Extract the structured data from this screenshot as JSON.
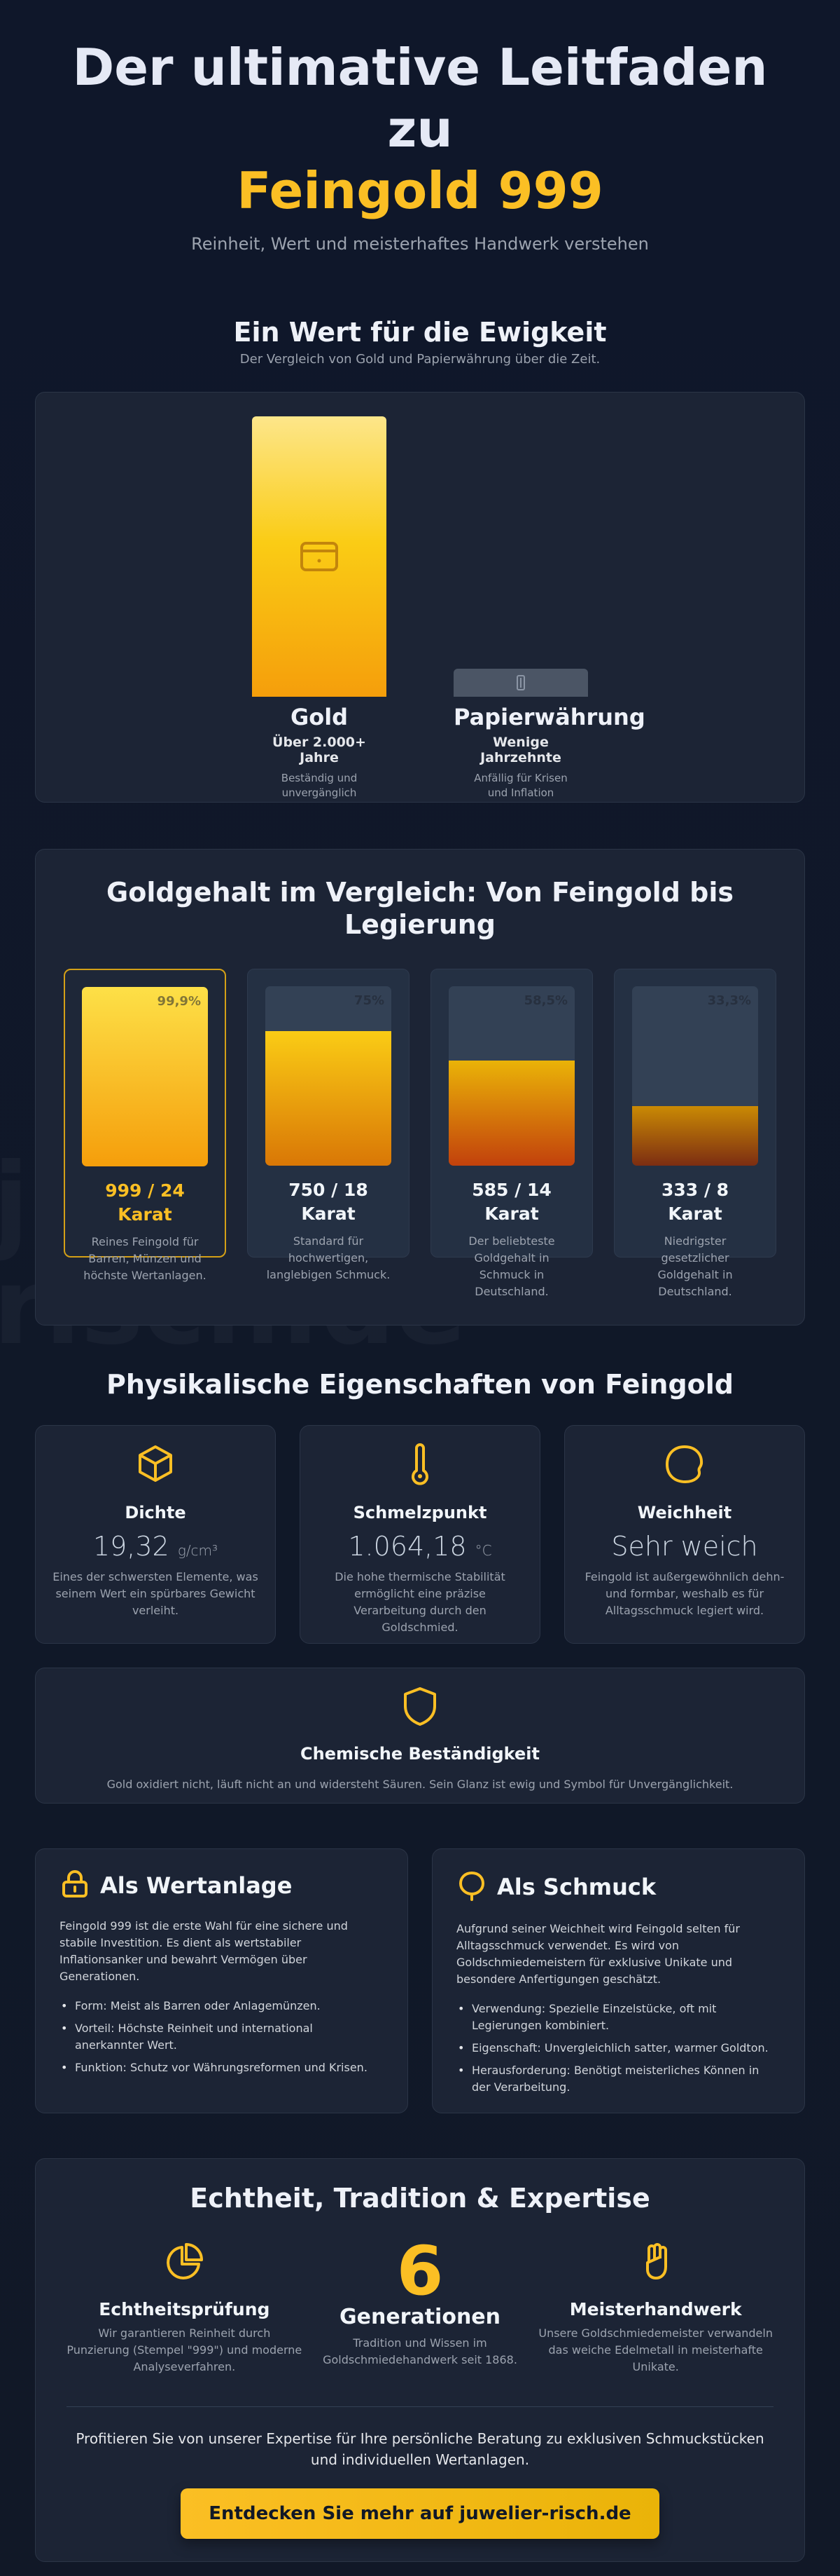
{
  "hero": {
    "title_line1": "Der ultimative Leitfaden",
    "title_line2": "zu",
    "title_gold": "Feingold 999",
    "subtitle": "Reinheit, Wert und meisterhaftes Handwerk verstehen"
  },
  "watermark": {
    "line1": "juwelier-",
    "line2": "risch.de"
  },
  "value": {
    "title": "Ein Wert für die Ewigkeit",
    "subtitle": "Der Vergleich von Gold und Papierwährung über die Zeit.",
    "gold": {
      "label": "Gold",
      "span": "Über 2.000+ Jahre",
      "note": "Beständig und unvergänglich",
      "icon": "wallet-icon",
      "level": 1.0
    },
    "paper": {
      "label": "Papierwährung",
      "span": "Wenige Jahrzehnte",
      "note": "Anfällig für Krisen und Inflation",
      "icon": "banknote-icon",
      "level": 0.1
    }
  },
  "purity": {
    "title": "Goldgehalt im Vergleich: Von Feingold bis Legierung",
    "karats": [
      {
        "pct": "99,9%",
        "level": 0.999,
        "name": "999 / 24 Karat",
        "desc": "Reines Feingold für Barren, Münzen und höchste Wertanlagen."
      },
      {
        "pct": "75%",
        "level": 0.75,
        "name": "750 / 18 Karat",
        "desc": "Standard für hochwertigen, langlebigen Schmuck."
      },
      {
        "pct": "58,5%",
        "level": 0.585,
        "name": "585 / 14 Karat",
        "desc": "Der beliebteste Goldgehalt in Schmuck in Deutschland."
      },
      {
        "pct": "33,3%",
        "level": 0.333,
        "name": "333 / 8 Karat",
        "desc": "Niedrigster gesetzlicher Goldgehalt in Deutschland."
      }
    ]
  },
  "properties": {
    "title": "Physikalische Eigenschaften von Feingold",
    "density": {
      "title": "Dichte",
      "value": "19,32",
      "unit": "g/cm³",
      "desc": "Eines der schwersten Elemente, was seinem Wert ein spürbares Gewicht verleiht.",
      "icon": "cube-icon"
    },
    "melting": {
      "title": "Schmelzpunkt",
      "value": "1.064,18",
      "unit": "°C",
      "desc": "Die hohe thermische Stabilität ermöglicht eine präzise Verarbeitung durch den Goldschmied.",
      "icon": "thermometer-icon"
    },
    "softness": {
      "title": "Weichheit",
      "value": "Sehr weich",
      "desc": "Feingold ist außergewöhnlich dehn- und formbar, weshalb es für Alltagsschmuck legiert wird.",
      "icon": "blob-icon"
    },
    "chemical": {
      "title": "Chemische Beständigkeit",
      "desc": "Gold oxidiert nicht, läuft nicht an und widersteht Säuren. Sein Glanz ist ewig und Symbol für Unvergänglichkeit.",
      "icon": "shield-icon"
    }
  },
  "usage": {
    "investment": {
      "title": "Als Wertanlage",
      "icon": "lock-icon",
      "text": "Feingold 999 ist die erste Wahl für eine sichere und stabile Investition. Es dient als wertstabiler Inflationsanker und bewahrt Vermögen über Generationen.",
      "bullets": [
        "Form: Meist als Barren oder Anlagemünzen.",
        "Vorteil: Höchste Reinheit und international anerkannter Wert.",
        "Funktion: Schutz vor Währungsreformen und Krisen."
      ]
    },
    "jewelry": {
      "title": "Als Schmuck",
      "icon": "ring-icon",
      "text": "Aufgrund seiner Weichheit wird Feingold selten für Alltagsschmuck verwendet. Es wird von Goldschmiedemeistern für exklusive Unikate und besondere Anfertigungen geschätzt.",
      "bullets": [
        "Verwendung: Spezielle Einzelstücke, oft mit Legierungen kombiniert.",
        "Eigenschaft: Unvergleichlich satter, warmer Goldton.",
        "Herausforderung: Benötigt meisterliches Können in der Verarbeitung."
      ]
    }
  },
  "heritage": {
    "title": "Echtheit, Tradition & Expertise",
    "check": {
      "title": "Echtheitsprüfung",
      "desc": "Wir garantieren Reinheit durch Punzierung (Stempel \"999\") und moderne Analyseverfahren.",
      "icon": "pie-chart-icon"
    },
    "generations": {
      "number": "6",
      "title": "Generationen",
      "desc": "Tradition und Wissen im Goldschmiedehandwerk seit 1868."
    },
    "craft": {
      "title": "Meisterhandwerk",
      "desc": "Unsere Goldschmiedemeister verwandeln das weiche Edelmetall in meisterhafte Unikate.",
      "icon": "glove-icon"
    },
    "cta_text": "Profitieren Sie von unserer Expertise für Ihre persönliche Beratung zu exklusiven Schmuckstücken und individuellen Wertanlagen.",
    "cta_button": "Entdecken Sie mehr auf juwelier-risch.de"
  },
  "colors": {
    "accent": "#fbbf24",
    "background": "#111827",
    "card": "#1c2435"
  }
}
